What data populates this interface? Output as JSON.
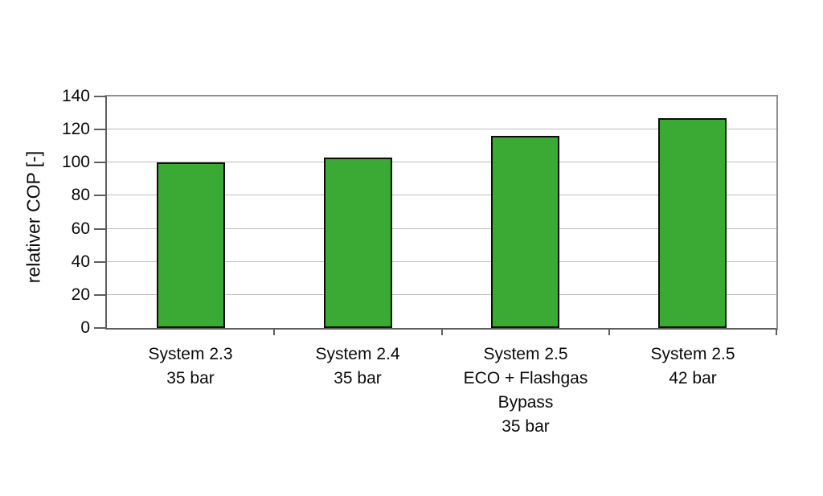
{
  "chart_data": {
    "type": "bar",
    "title": "",
    "xlabel": "",
    "ylabel": "relativer COP [-]",
    "ylim": [
      0,
      140
    ],
    "yticks": [
      0,
      20,
      40,
      60,
      80,
      100,
      120,
      140
    ],
    "grid": "horizontal-on",
    "legend": "none",
    "categories": [
      [
        "System 2.3",
        "35 bar"
      ],
      [
        "System 2.4",
        "35 bar"
      ],
      [
        "System 2.5",
        "ECO + Flashgas",
        "Bypass",
        "35 bar"
      ],
      [
        "System 2.5",
        "42 bar"
      ]
    ],
    "values": [
      100,
      103,
      116,
      127
    ],
    "bar_fill_color": "#3aaa35",
    "bar_border_color": "#0c0c0c",
    "axis_color": "#5e5e5e",
    "plot_border_color": "#8f8f8f",
    "gridline_color": "#bdbdbd",
    "text_color": "#0a0a0a",
    "background_color": "#ffffff"
  }
}
